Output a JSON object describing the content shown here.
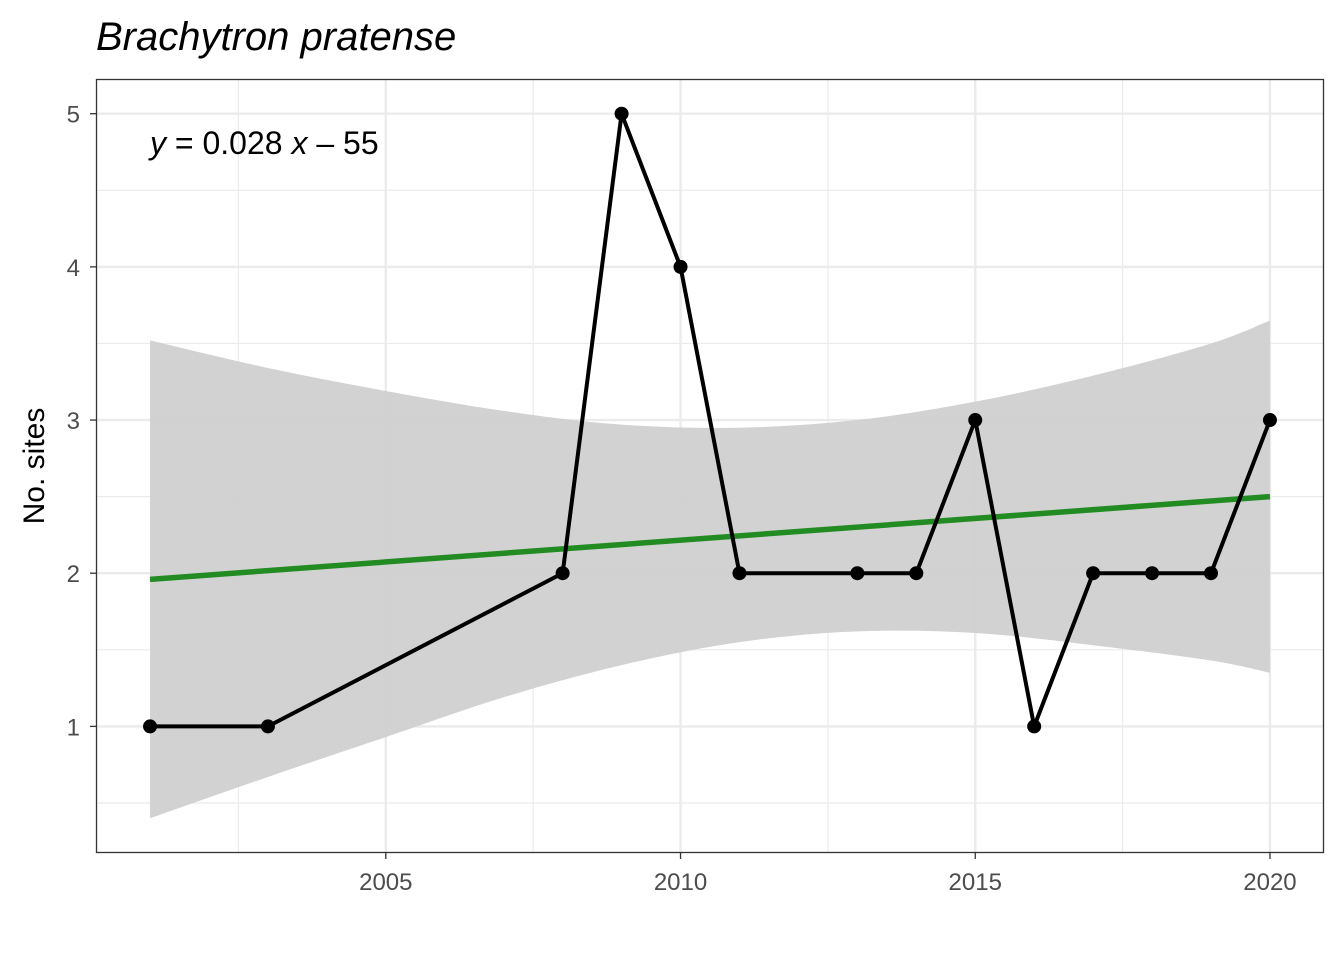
{
  "chart_data": {
    "type": "line",
    "title": "Brachytron pratense",
    "xlabel": "",
    "ylabel": "No. sites",
    "xlim": [
      2000.1,
      2020.9
    ],
    "ylim": [
      0.18,
      5.22
    ],
    "x_ticks": [
      2005,
      2010,
      2015,
      2020
    ],
    "x_minor_ticks": [
      2002.5,
      2007.5,
      2012.5,
      2017.5
    ],
    "y_ticks": [
      1,
      2,
      3,
      4,
      5
    ],
    "y_minor_ticks": [
      0.5,
      1.5,
      2.5,
      3.5,
      4.5
    ],
    "grid": true,
    "series": [
      {
        "x": [
          2001,
          2003,
          2008,
          2009,
          2010,
          2011,
          2013,
          2014,
          2015,
          2016,
          2017,
          2018,
          2019,
          2020
        ],
        "values": [
          1,
          1,
          2,
          5,
          4,
          2,
          2,
          2,
          3,
          1,
          2,
          2,
          2,
          3
        ]
      }
    ],
    "trend": {
      "x": [
        2001,
        2020
      ],
      "values": [
        1.96,
        2.5
      ],
      "ci_x": [
        2001,
        2003,
        2005,
        2007,
        2009,
        2011,
        2013,
        2015,
        2017,
        2019,
        2020
      ],
      "ci_upper": [
        3.52,
        3.34,
        3.19,
        3.06,
        2.97,
        2.95,
        3.0,
        3.12,
        3.29,
        3.5,
        3.65
      ],
      "ci_lower": [
        0.4,
        0.67,
        0.93,
        1.19,
        1.4,
        1.55,
        1.62,
        1.61,
        1.53,
        1.43,
        1.35
      ],
      "annotation": {
        "y_var": "y",
        "equals": " = 0.028 ",
        "x_var": "x",
        "rest": " – 55"
      }
    },
    "colors": {
      "line": "#000000",
      "trend": "#228B22",
      "ci_band": "#d0d0d0",
      "grid": "#ebebeb",
      "panel_border": "#333333"
    }
  }
}
